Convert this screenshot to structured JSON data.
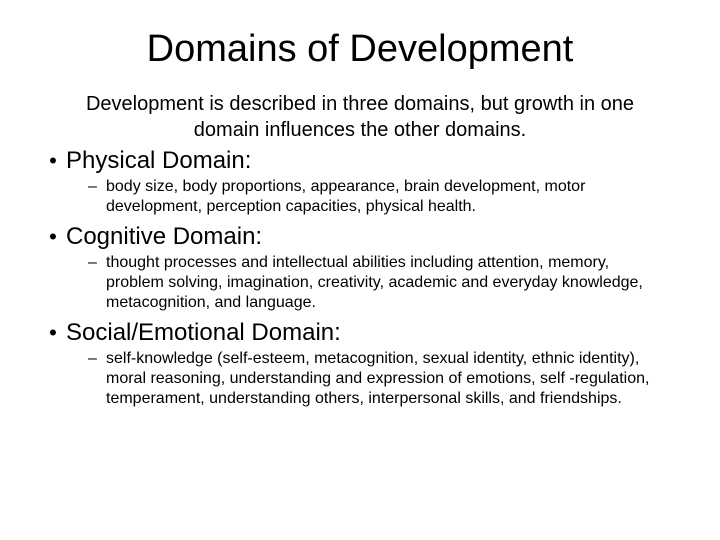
{
  "title": "Domains of Development",
  "subtitle": "Development is described in three domains, but growth in one domain influences the other domains.",
  "domains": [
    {
      "heading": "Physical Domain:",
      "detail": "body size, body proportions, appearance, brain development, motor development, perception capacities, physical health."
    },
    {
      "heading": "Cognitive Domain:",
      "detail": "thought processes and intellectual abilities including attention, memory, problem solving, imagination, creativity, academic and everyday knowledge, metacognition, and language."
    },
    {
      "heading": "Social/Emotional Domain:",
      "detail": "self-knowledge (self-esteem, metacognition, sexual identity, ethnic identity), moral reasoning, understanding and expression of emotions, self -regulation, temperament, understanding others, interpersonal skills, and friendships."
    }
  ],
  "colors": {
    "background": "#ffffff",
    "text": "#000000"
  },
  "typography": {
    "title_fontsize": 38,
    "subtitle_fontsize": 20,
    "domain_heading_fontsize": 24,
    "detail_fontsize": 16,
    "font_family": "Arial"
  }
}
